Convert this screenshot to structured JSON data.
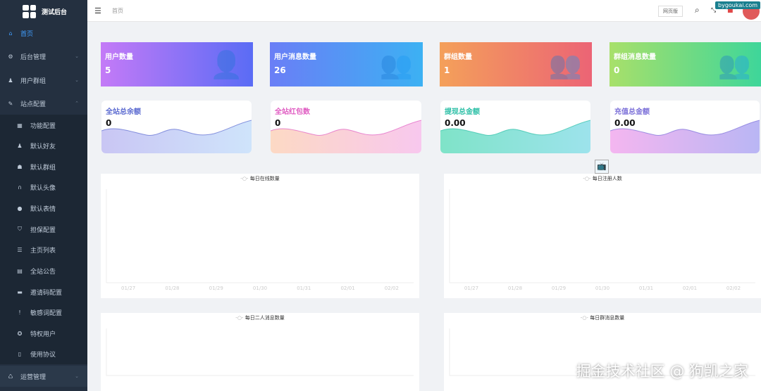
{
  "app": {
    "title": "测试后台"
  },
  "sidebar": {
    "items": [
      {
        "label": "首页",
        "icon": "home-icon",
        "glyph": "⌂",
        "active": true
      },
      {
        "label": "后台管理",
        "icon": "gear-icon",
        "glyph": "⚙",
        "arrow": "⌄"
      },
      {
        "label": "用户群组",
        "icon": "user-icon",
        "glyph": "♟",
        "arrow": "⌄"
      },
      {
        "label": "站点配置",
        "icon": "wrench-icon",
        "glyph": "✎",
        "arrow": "⌃"
      }
    ],
    "submenu": [
      {
        "label": "功能配置",
        "icon": "grid-icon",
        "glyph": "▦"
      },
      {
        "label": "默认好友",
        "icon": "user-add-icon",
        "glyph": "♟"
      },
      {
        "label": "默认群组",
        "icon": "group-icon",
        "glyph": "☗"
      },
      {
        "label": "默认头像",
        "icon": "headset-icon",
        "glyph": "∩"
      },
      {
        "label": "默认表情",
        "icon": "smile-icon",
        "glyph": "●"
      },
      {
        "label": "担保配置",
        "icon": "shield-icon",
        "glyph": "⛉"
      },
      {
        "label": "主页列表",
        "icon": "list-icon",
        "glyph": "☰"
      },
      {
        "label": "全站公告",
        "icon": "document-icon",
        "glyph": "▤"
      },
      {
        "label": "邀请码配置",
        "icon": "code-icon",
        "glyph": "▬"
      },
      {
        "label": "敏感词配置",
        "icon": "alert-icon",
        "glyph": "!"
      },
      {
        "label": "特权用户",
        "icon": "badge-icon",
        "glyph": "✪"
      },
      {
        "label": "使用协议",
        "icon": "file-icon",
        "glyph": "▯"
      }
    ],
    "bottom": {
      "label": "运营管理",
      "icon": "operations-icon",
      "glyph": "♺",
      "arrow": "⌄"
    }
  },
  "header": {
    "breadcrumb": "首页",
    "web_button": "网页版"
  },
  "stats": [
    {
      "label": "用户数量",
      "value": "5",
      "icon": "user-icon",
      "gradient": [
        "#c47af7",
        "#5a6cf5"
      ]
    },
    {
      "label": "用户消息数量",
      "value": "26",
      "icon": "user-chat-icon",
      "gradient": [
        "#6a7ef6",
        "#3cb1f3"
      ]
    },
    {
      "label": "群组数量",
      "value": "1",
      "icon": "group-icon",
      "gradient": [
        "#f4a05a",
        "#ec6475"
      ]
    },
    {
      "label": "群组消息数量",
      "value": "0",
      "icon": "group-chat-icon",
      "gradient": [
        "#a8e06a",
        "#3ed69a"
      ]
    }
  ],
  "money": [
    {
      "label": "全站总余额",
      "value": "0",
      "color": "#5b6ad0",
      "gradient": [
        "#c9c6f4",
        "#cfe4fb"
      ]
    },
    {
      "label": "全站红包数",
      "value": "0",
      "color": "#e05cc2",
      "gradient": [
        "#fcd9c4",
        "#f8c8ee"
      ]
    },
    {
      "label": "提现总金额",
      "value": "0.00",
      "color": "#2cbfa6",
      "gradient": [
        "#7fe3c8",
        "#9de3ec"
      ]
    },
    {
      "label": "充值总金额",
      "value": "0.00",
      "color": "#7b6fd8",
      "gradient": [
        "#f4b6f0",
        "#b9b6f4"
      ]
    }
  ],
  "chart_data": [
    {
      "type": "line",
      "legend": "每日在线数量",
      "categories": [
        "01/27",
        "01/28",
        "01/29",
        "01/30",
        "01/31",
        "02/01",
        "02/02"
      ],
      "series": []
    },
    {
      "type": "line",
      "legend": "每日注册人数",
      "categories": [
        "01/27",
        "01/28",
        "01/29",
        "01/30",
        "01/31",
        "02/01",
        "02/02"
      ],
      "series": []
    },
    {
      "type": "line",
      "legend": "每日二人消息数量",
      "categories": [],
      "series": []
    },
    {
      "type": "line",
      "legend": "每日群消息数量",
      "categories": [],
      "series": []
    }
  ],
  "watermarks": {
    "top": "bygoukai.com",
    "bottom": "掘金技术社区 @ 狗凯之家"
  }
}
